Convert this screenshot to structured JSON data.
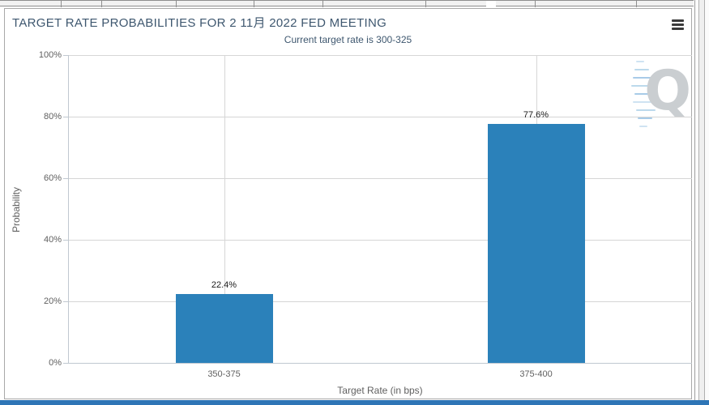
{
  "chart": {
    "menu_tooltip": "Chart context menu",
    "watermark_letter": "Q",
    "colors": {
      "bar": "#2b81ba",
      "title_text": "#3e576f",
      "axis_text": "#606060",
      "gridline": "#d6d6d6",
      "bottom_bar": "#2e75b6"
    }
  },
  "chart_data": {
    "type": "bar",
    "title": "TARGET RATE PROBABILITIES FOR 2 11月 2022 FED MEETING",
    "subtitle": "Current target rate is 300-325",
    "categories": [
      "350-375",
      "375-400"
    ],
    "values": [
      22.4,
      77.6
    ],
    "data_labels": [
      "22.4%",
      "77.6%"
    ],
    "xlabel": "Target Rate (in bps)",
    "ylabel": "Probability",
    "ylim": [
      0,
      100
    ],
    "ytick_values": [
      0,
      20,
      40,
      60,
      80,
      100
    ],
    "ytick_labels": [
      "0%",
      "20%",
      "40%",
      "60%",
      "80%",
      "100%"
    ],
    "grid": true,
    "legend": false
  }
}
